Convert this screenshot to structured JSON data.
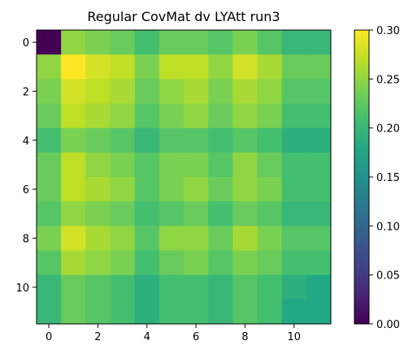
{
  "chart_data": {
    "type": "heatmap",
    "title": "Regular CovMat dv LYAtt run3",
    "xlabel": "",
    "ylabel": "",
    "x_ticks": [
      0,
      2,
      4,
      6,
      8,
      10
    ],
    "y_ticks": [
      0,
      2,
      4,
      6,
      8,
      10
    ],
    "colormap": "viridis",
    "vmin": 0.0,
    "vmax": 0.3,
    "colorbar_ticks": [
      "0.00",
      "0.05",
      "0.10",
      "0.15",
      "0.20",
      "0.25",
      "0.30"
    ],
    "values": [
      [
        0.0,
        0.25,
        0.24,
        0.23,
        0.21,
        0.23,
        0.23,
        0.22,
        0.24,
        0.22,
        0.2,
        0.2
      ],
      [
        0.25,
        0.3,
        0.28,
        0.27,
        0.24,
        0.27,
        0.27,
        0.25,
        0.28,
        0.26,
        0.23,
        0.23
      ],
      [
        0.24,
        0.28,
        0.27,
        0.26,
        0.23,
        0.25,
        0.26,
        0.24,
        0.26,
        0.25,
        0.22,
        0.22
      ],
      [
        0.23,
        0.27,
        0.26,
        0.25,
        0.22,
        0.24,
        0.25,
        0.23,
        0.25,
        0.24,
        0.21,
        0.21
      ],
      [
        0.21,
        0.24,
        0.23,
        0.22,
        0.2,
        0.22,
        0.22,
        0.21,
        0.22,
        0.21,
        0.19,
        0.19
      ],
      [
        0.23,
        0.27,
        0.25,
        0.24,
        0.22,
        0.24,
        0.24,
        0.22,
        0.25,
        0.23,
        0.21,
        0.21
      ],
      [
        0.23,
        0.27,
        0.26,
        0.25,
        0.22,
        0.24,
        0.25,
        0.23,
        0.25,
        0.24,
        0.21,
        0.21
      ],
      [
        0.22,
        0.25,
        0.24,
        0.23,
        0.21,
        0.22,
        0.23,
        0.21,
        0.23,
        0.22,
        0.2,
        0.2
      ],
      [
        0.24,
        0.28,
        0.26,
        0.25,
        0.22,
        0.25,
        0.25,
        0.23,
        0.26,
        0.24,
        0.22,
        0.22
      ],
      [
        0.22,
        0.26,
        0.25,
        0.24,
        0.21,
        0.23,
        0.24,
        0.22,
        0.24,
        0.23,
        0.21,
        0.21
      ],
      [
        0.2,
        0.23,
        0.22,
        0.21,
        0.19,
        0.21,
        0.21,
        0.2,
        0.22,
        0.21,
        0.19,
        0.18
      ],
      [
        0.2,
        0.23,
        0.22,
        0.21,
        0.19,
        0.21,
        0.21,
        0.2,
        0.22,
        0.21,
        0.18,
        0.18
      ]
    ]
  }
}
